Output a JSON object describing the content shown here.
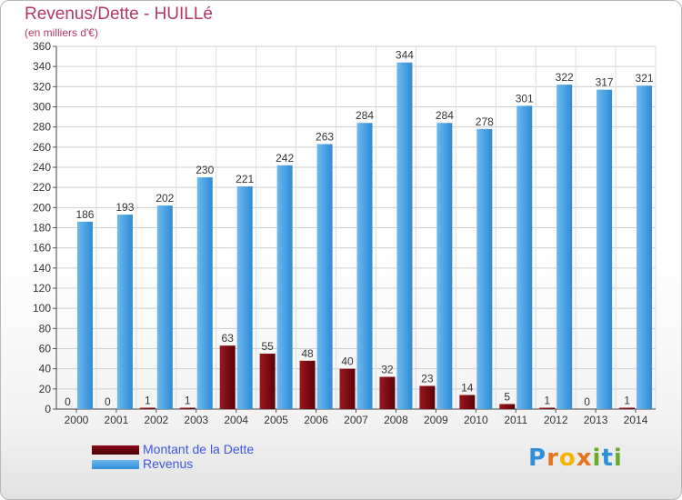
{
  "chart_data": {
    "type": "bar",
    "title": "Revenus/Dette - HUILLé",
    "subtitle": "(en milliers d'€)",
    "categories": [
      "2000",
      "2001",
      "2002",
      "2003",
      "2004",
      "2005",
      "2006",
      "2007",
      "2008",
      "2009",
      "2010",
      "2011",
      "2012",
      "2013",
      "2014"
    ],
    "series": [
      {
        "name": "Montant de la Dette",
        "color": "#6e0a12",
        "values": [
          0,
          0,
          1,
          1,
          63,
          55,
          48,
          40,
          32,
          23,
          14,
          5,
          1,
          0,
          1
        ]
      },
      {
        "name": "Revenus",
        "color": "#3d9be3",
        "values": [
          186,
          193,
          202,
          230,
          221,
          242,
          263,
          284,
          344,
          284,
          278,
          301,
          322,
          317,
          321
        ]
      }
    ],
    "ylim": [
      0,
      360
    ],
    "yticks": [
      0,
      20,
      40,
      60,
      80,
      100,
      120,
      140,
      160,
      180,
      200,
      220,
      240,
      260,
      280,
      300,
      320,
      340,
      360
    ],
    "grid": true,
    "legend_position": "bottom-left"
  },
  "logo": {
    "text": "Proxiti"
  }
}
